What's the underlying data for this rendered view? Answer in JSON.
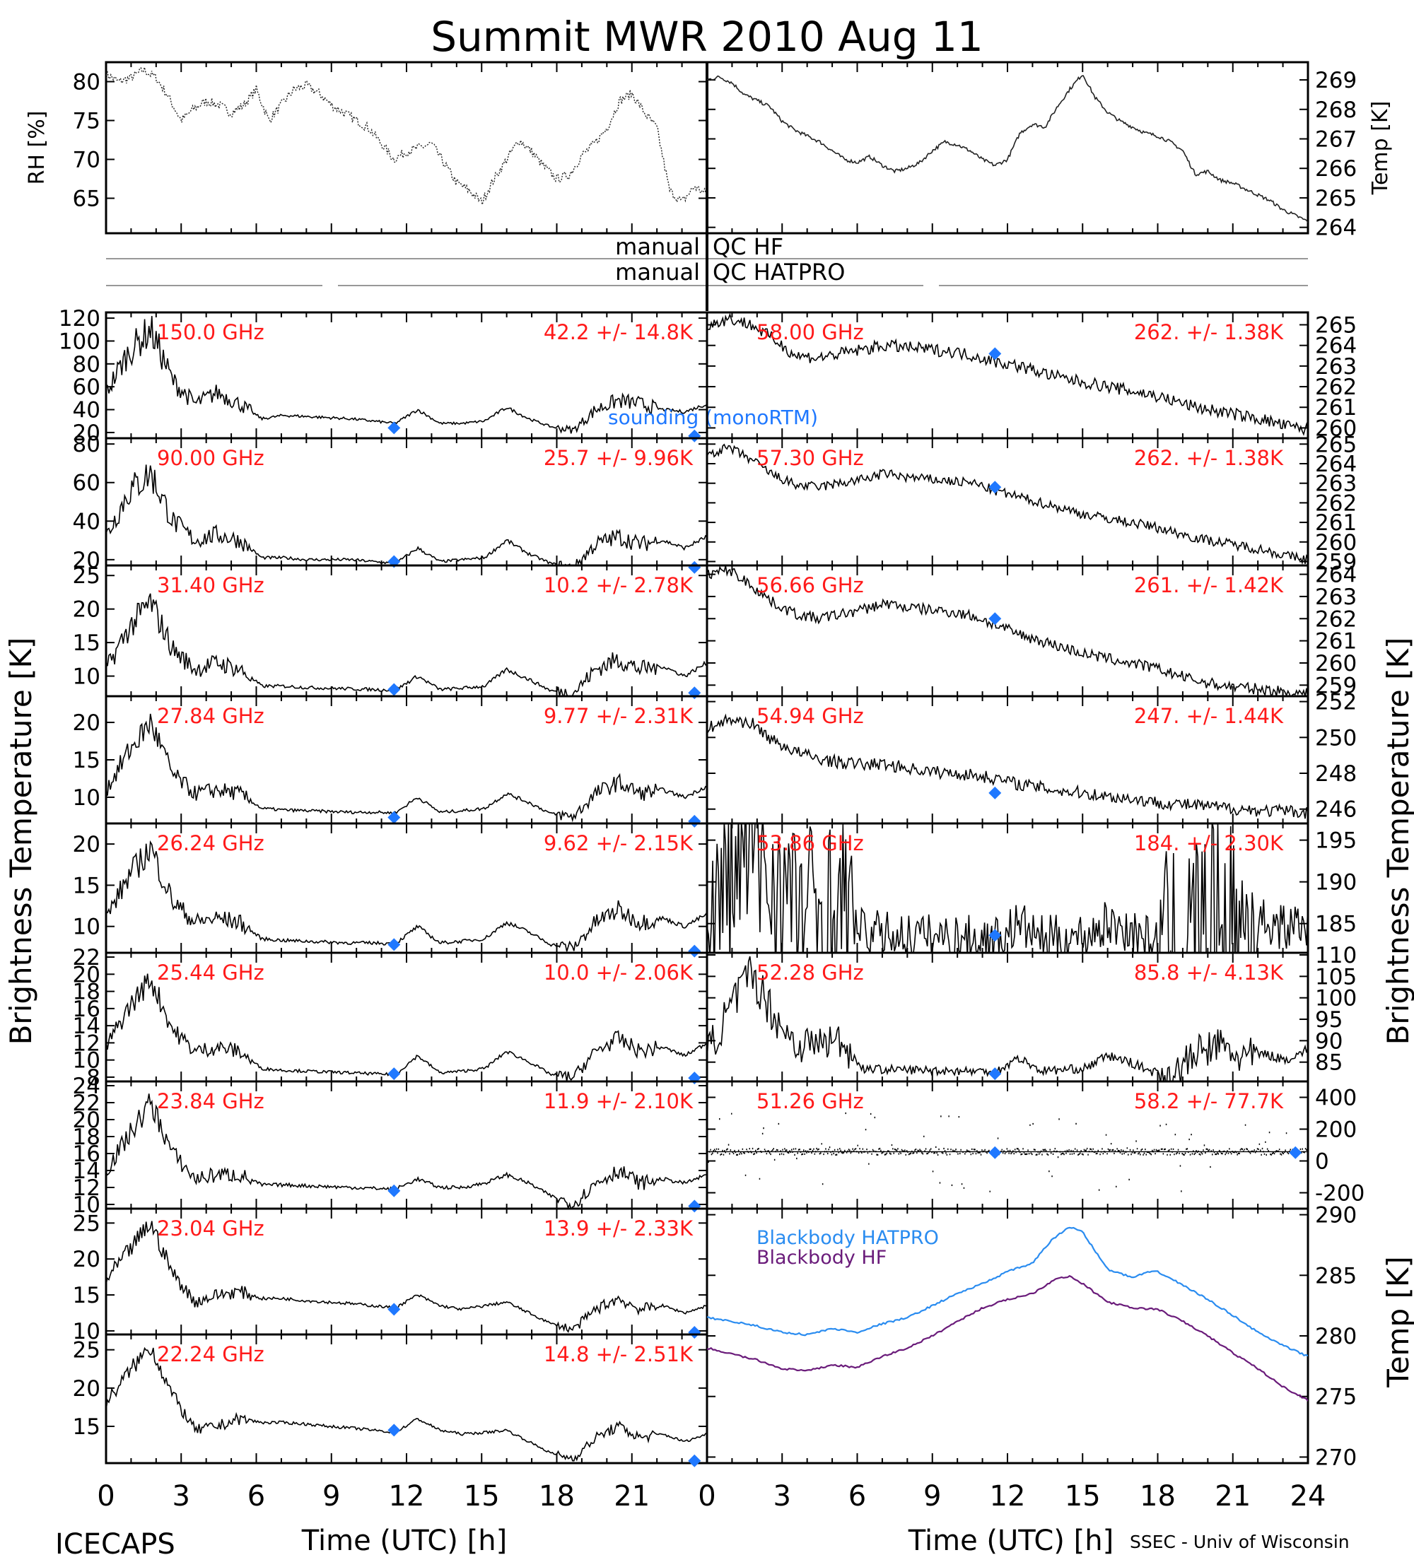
{
  "title": "Summit MWR 2010 Aug 11",
  "footer": {
    "left": "ICECAPS",
    "right": "SSEC - Univ of Wisconsin",
    "xlabel_left": "Time (UTC) [h]",
    "xlabel_right": "Time (UTC) [h]"
  },
  "axis_titles": {
    "left": "Brightness Temperature [K]",
    "right": "Brightness Temperature [K]",
    "bottom_right": "Temp [K]"
  },
  "qc_labels": {
    "hf_left": "manual",
    "hf_right": "QC HF",
    "hatpro_left": "manual",
    "hatpro_right": "QC HATPRO"
  },
  "sounding_label": "sounding (monoRTM)",
  "colors": {
    "trace": "#000000",
    "label": "#ff1a1a",
    "sounding": "#1f78ff",
    "bb_hatpro": "#2a8cf0",
    "bb_hf": "#6a1b7a"
  },
  "chart_data": [
    {
      "type": "line",
      "panel": "surface-rh",
      "ylabel": "RH [%]",
      "yticks": [
        65,
        70,
        75,
        80
      ],
      "ylim": [
        60.5,
        82.5
      ],
      "x": [
        0,
        0.5,
        1,
        1.5,
        2,
        2.5,
        3,
        3.5,
        4,
        4.5,
        5,
        5.5,
        6,
        6.5,
        7,
        7.5,
        8,
        8.5,
        9,
        9.5,
        10,
        10.5,
        11,
        11.5,
        12,
        12.5,
        13,
        13.5,
        14,
        14.5,
        15,
        15.5,
        16,
        16.5,
        17,
        17.5,
        18,
        18.5,
        19,
        19.5,
        20,
        20.5,
        21,
        21.5,
        22,
        22.5,
        23,
        23.5,
        24
      ],
      "y": [
        81,
        80,
        80.5,
        81.5,
        80.5,
        78,
        75,
        76.5,
        77.5,
        77,
        76,
        77,
        79,
        75,
        77,
        79,
        79.5,
        78.5,
        77,
        76,
        75,
        74,
        72,
        70,
        71,
        71.5,
        72,
        69.5,
        67,
        66,
        64.5,
        67.5,
        70,
        72.5,
        71,
        69,
        67.5,
        68,
        70.5,
        72,
        74,
        77.5,
        78.5,
        76,
        74,
        66,
        64.5,
        66.5,
        65.5
      ]
    },
    {
      "type": "line",
      "panel": "surface-temp",
      "ylabel": "Temp [K]",
      "yticks": [
        264,
        265,
        266,
        267,
        268,
        269
      ],
      "ylim": [
        263.8,
        269.6
      ],
      "x": [
        0,
        0.5,
        1,
        1.5,
        2,
        2.5,
        3,
        3.5,
        4,
        4.5,
        5,
        5.5,
        6,
        6.5,
        7,
        7.5,
        8,
        8.5,
        9,
        9.5,
        10,
        10.5,
        11,
        11.5,
        12,
        12.5,
        13,
        13.5,
        14,
        14.5,
        15,
        15.5,
        16,
        16.5,
        17,
        17.5,
        18,
        18.5,
        19,
        19.5,
        20,
        20.5,
        21,
        21.5,
        22,
        22.5,
        23,
        23.5,
        24
      ],
      "y": [
        269,
        269.1,
        268.9,
        268.5,
        268.3,
        268.1,
        267.6,
        267.3,
        267.1,
        266.9,
        266.6,
        266.3,
        266.2,
        266.4,
        266.1,
        265.9,
        266,
        266.2,
        266.6,
        266.9,
        266.8,
        266.6,
        266.3,
        266.1,
        266.3,
        267.2,
        267.5,
        267.4,
        268.1,
        268.7,
        269.2,
        268.4,
        267.9,
        267.6,
        267.4,
        267.2,
        267.1,
        266.9,
        266.6,
        265.8,
        265.9,
        265.6,
        265.5,
        265.3,
        265.1,
        264.9,
        264.6,
        264.4,
        264.2
      ]
    },
    {
      "type": "line",
      "panel": "tb-left",
      "label": "150.0 GHz",
      "stat": "42.2 +/- 14.8K",
      "yticks": [
        20,
        40,
        60,
        80,
        100,
        120
      ],
      "ylim": [
        15,
        125
      ],
      "profile": [
        55,
        90,
        110,
        65,
        45,
        55,
        45,
        32,
        35,
        34,
        33,
        32,
        30,
        28,
        40,
        28,
        28,
        30,
        42,
        32,
        25,
        22,
        40,
        48,
        45,
        40,
        38,
        45
      ],
      "amp": 0.15,
      "sounding": [
        [
          11.5,
          24
        ],
        [
          23.5,
          17
        ]
      ]
    },
    {
      "type": "line",
      "panel": "tb-left",
      "label": "90.00 GHz",
      "stat": "25.7 +/- 9.96K",
      "yticks": [
        20,
        40,
        60,
        80
      ],
      "ylim": [
        17,
        83
      ],
      "profile": [
        32,
        55,
        65,
        40,
        30,
        33,
        30,
        21,
        21,
        20,
        20,
        20,
        19,
        18,
        26,
        19,
        20,
        21,
        30,
        23,
        18,
        16,
        28,
        32,
        28,
        30,
        26,
        32
      ],
      "amp": 0.15,
      "sounding": [
        [
          11.5,
          19
        ],
        [
          23.5,
          16
        ]
      ]
    },
    {
      "type": "line",
      "panel": "tb-left",
      "label": "31.40 GHz",
      "stat": "10.2 +/- 2.78K",
      "yticks": [
        10,
        15,
        20,
        25
      ],
      "ylim": [
        7,
        26.5
      ],
      "profile": [
        11,
        17,
        21,
        14,
        11,
        12,
        11,
        8.5,
        8.5,
        8.3,
        8.2,
        8.1,
        8.0,
        7.9,
        10,
        8,
        8.2,
        8.5,
        11,
        9.5,
        7.8,
        7.5,
        11,
        12.5,
        11,
        11.5,
        10,
        12
      ],
      "amp": 0.12,
      "sounding": [
        [
          11.5,
          8
        ],
        [
          23.5,
          7.5
        ]
      ]
    },
    {
      "type": "line",
      "panel": "tb-left",
      "label": "27.84 GHz",
      "stat": "9.77 +/- 2.31K",
      "yticks": [
        10,
        15,
        20
      ],
      "ylim": [
        6.5,
        23.5
      ],
      "profile": [
        11,
        16,
        20,
        13,
        10.5,
        11,
        10.5,
        8.5,
        8.3,
        8.2,
        8.1,
        8.0,
        8.0,
        7.9,
        10,
        8,
        8.2,
        8.5,
        10.5,
        9.3,
        7.8,
        7.4,
        10.5,
        12,
        10.5,
        11,
        10,
        11.5
      ],
      "amp": 0.1,
      "sounding": [
        [
          11.5,
          7.3
        ],
        [
          23.5,
          6.8
        ]
      ]
    },
    {
      "type": "line",
      "panel": "tb-left",
      "label": "26.24 GHz",
      "stat": "9.62 +/- 2.15K",
      "yticks": [
        10,
        15,
        20
      ],
      "ylim": [
        6.8,
        22.5
      ],
      "profile": [
        11,
        16,
        19.5,
        13,
        10.5,
        11,
        10.5,
        8.5,
        8.3,
        8.2,
        8.1,
        8.0,
        8.0,
        7.9,
        10,
        8,
        8.2,
        8.5,
        10.5,
        9.3,
        7.8,
        7.4,
        10.5,
        12,
        10.5,
        11,
        10,
        11.5
      ],
      "amp": 0.1,
      "sounding": [
        [
          11.5,
          7.8
        ],
        [
          23.5,
          7
        ]
      ]
    },
    {
      "type": "line",
      "panel": "tb-left",
      "label": "25.44 GHz",
      "stat": "10.0 +/- 2.06K",
      "yticks": [
        8,
        10,
        12,
        14,
        16,
        18,
        20,
        22
      ],
      "ylim": [
        7.5,
        22.5
      ],
      "profile": [
        11.5,
        16,
        19.5,
        13.5,
        11,
        11.5,
        11,
        9,
        8.8,
        8.7,
        8.6,
        8.5,
        8.4,
        8.3,
        10.5,
        8.5,
        8.7,
        9,
        11,
        9.8,
        8.3,
        8,
        11,
        12.5,
        11,
        11.5,
        10.5,
        12
      ],
      "amp": 0.08,
      "sounding": [
        [
          11.5,
          8.4
        ],
        [
          23.5,
          7.9
        ]
      ]
    },
    {
      "type": "line",
      "panel": "tb-left",
      "label": "23.84 GHz",
      "stat": "11.9 +/- 2.10K",
      "yticks": [
        10,
        12,
        14,
        16,
        18,
        20,
        22,
        24
      ],
      "ylim": [
        9.5,
        24.5
      ],
      "profile": [
        14,
        18,
        22,
        16,
        13,
        13.5,
        13.5,
        12.3,
        12.3,
        12.2,
        12.1,
        12.0,
        11.9,
        11.8,
        13,
        12,
        12,
        12.5,
        13.5,
        12.5,
        11,
        10,
        12.5,
        14,
        12.5,
        13,
        12.5,
        13.5
      ],
      "amp": 0.07,
      "sounding": [
        [
          11.5,
          11.6
        ],
        [
          23.5,
          9.8
        ]
      ]
    },
    {
      "type": "line",
      "panel": "tb-left",
      "label": "23.04 GHz",
      "stat": "13.9 +/- 2.33K",
      "yticks": [
        10,
        15,
        20,
        25
      ],
      "ylim": [
        9.5,
        27
      ],
      "profile": [
        17,
        21,
        25,
        18,
        14,
        15,
        15.5,
        14.5,
        14.5,
        14.2,
        14,
        13.8,
        13.5,
        13.2,
        15,
        13.5,
        13,
        13.5,
        14,
        12.5,
        11,
        10.2,
        13,
        14.5,
        13,
        13.5,
        12.5,
        13.5
      ],
      "amp": 0.06,
      "sounding": [
        [
          11.5,
          13
        ],
        [
          23.5,
          9.8
        ]
      ]
    },
    {
      "type": "line",
      "panel": "tb-left",
      "label": "22.24 GHz",
      "stat": "14.8 +/- 2.51K",
      "yticks": [
        15,
        20,
        25
      ],
      "ylim": [
        10.2,
        27
      ],
      "profile": [
        18,
        22,
        25.5,
        19,
        14.5,
        15,
        16,
        15.5,
        15.5,
        15.3,
        15,
        14.8,
        14.5,
        14.2,
        16,
        14.5,
        14,
        14.2,
        14.5,
        13,
        11.5,
        10.8,
        13.5,
        15,
        13.5,
        14,
        13,
        14
      ],
      "amp": 0.05,
      "sounding": [
        [
          11.5,
          14.5
        ],
        [
          23.5,
          10.5
        ]
      ]
    },
    {
      "type": "line",
      "panel": "tb-right",
      "label": "58.00 GHz",
      "stat": "262. +/- 1.38K",
      "yticks": [
        260,
        261,
        262,
        263,
        264,
        265
      ],
      "ylim": [
        259.5,
        265.6
      ],
      "profile": [
        265,
        265.3,
        265,
        264.3,
        263.5,
        263.4,
        263.6,
        263.8,
        264.0,
        263.9,
        263.8,
        263.7,
        263.5,
        263.2,
        263.0,
        262.7,
        262.4,
        262.2,
        262.0,
        261.8,
        261.6,
        261.3,
        261.0,
        260.8,
        260.6,
        260.4,
        260.1,
        259.9
      ],
      "noise": 0.3,
      "sounding": [
        [
          11.5,
          263.6
        ]
      ]
    },
    {
      "type": "line",
      "panel": "tb-right",
      "label": "57.30 GHz",
      "stat": "262. +/- 1.38K",
      "yticks": [
        259,
        260,
        261,
        262,
        263,
        264,
        265
      ],
      "ylim": [
        258.8,
        265.3
      ],
      "profile": [
        264.5,
        264.8,
        264.2,
        263.4,
        262.9,
        262.8,
        263.0,
        263.2,
        263.5,
        263.3,
        263.2,
        263.1,
        263.0,
        262.6,
        262.3,
        262.0,
        261.7,
        261.4,
        261.2,
        261.0,
        260.8,
        260.5,
        260.2,
        260.0,
        259.8,
        259.6,
        259.3,
        259.1
      ],
      "noise": 0.25,
      "sounding": [
        [
          11.5,
          262.8
        ]
      ]
    },
    {
      "type": "line",
      "panel": "tb-right",
      "label": "56.66 GHz",
      "stat": "261. +/- 1.42K",
      "yticks": [
        259,
        260,
        261,
        262,
        263,
        264
      ],
      "ylim": [
        258.5,
        264.4
      ],
      "profile": [
        264,
        264.2,
        263.5,
        262.7,
        262.2,
        262.0,
        262.2,
        262.4,
        262.7,
        262.5,
        262.4,
        262.3,
        262.1,
        261.7,
        261.3,
        261.0,
        260.7,
        260.4,
        260.2,
        260.0,
        259.8,
        259.5,
        259.2,
        259.0,
        258.9,
        258.8,
        258.7,
        258.6
      ],
      "noise": 0.25,
      "sounding": [
        [
          11.5,
          262.0
        ]
      ]
    },
    {
      "type": "line",
      "panel": "tb-right",
      "label": "54.94 GHz",
      "stat": "247. +/- 1.44K",
      "yticks": [
        246,
        248,
        250,
        252
      ],
      "ylim": [
        245.2,
        252.3
      ],
      "profile": [
        250.5,
        251,
        250.8,
        249.8,
        249.2,
        248.8,
        248.6,
        248.5,
        248.5,
        248.3,
        248.1,
        248.0,
        247.9,
        247.7,
        247.4,
        247.2,
        247.0,
        246.9,
        246.7,
        246.6,
        246.4,
        246.3,
        246.2,
        246.1,
        246.0,
        245.9,
        245.9,
        245.8
      ],
      "noise": 0.35,
      "sounding": [
        [
          11.5,
          246.9
        ]
      ]
    },
    {
      "type": "line",
      "panel": "tb-right",
      "label": "53.86 GHz",
      "stat": "184. +/- 2.30K",
      "yticks": [
        185,
        190,
        195
      ],
      "ylim": [
        181.5,
        197
      ],
      "profile": [
        185,
        190,
        194,
        190,
        187,
        186.5,
        187,
        184,
        183.8,
        183.6,
        183.5,
        183.4,
        183.3,
        183.2,
        185,
        183.3,
        183.3,
        183.6,
        185,
        184.2,
        183,
        182.6,
        185.5,
        186.5,
        184.8,
        185.3,
        184.5,
        185.2
      ],
      "amp": 0.06,
      "sounding": [
        [
          11.5,
          183.6
        ]
      ]
    },
    {
      "type": "line",
      "panel": "tb-right",
      "label": "52.28 GHz",
      "stat": "85.8 +/- 4.13K",
      "yticks": [
        85,
        90,
        95,
        100,
        105,
        110
      ],
      "ylim": [
        80.5,
        110.5
      ],
      "profile": [
        87,
        97,
        106,
        96,
        89,
        89.5,
        90,
        83.5,
        83.3,
        83.2,
        83.1,
        83,
        82.9,
        82.8,
        86,
        83,
        83.2,
        83.6,
        86.5,
        85,
        82.8,
        82.2,
        87,
        89,
        86,
        87,
        85.5,
        88
      ],
      "amp": 0.05,
      "sounding": [
        [
          11.5,
          82.3
        ]
      ]
    },
    {
      "type": "scatter",
      "panel": "tb-right",
      "label": "51.26 GHz",
      "stat": "58.2 +/- 77.7K",
      "yticks": [
        -200,
        0,
        200,
        400
      ],
      "ylim": [
        -300,
        500
      ],
      "center": 58,
      "sounding": [
        [
          11.5,
          52
        ],
        [
          23.5,
          52
        ]
      ]
    },
    {
      "type": "line",
      "panel": "blackbody-temp",
      "yticks": [
        270,
        275,
        280,
        285,
        290
      ],
      "ylim": [
        269.5,
        290.5
      ],
      "series": [
        {
          "name": "Blackbody HATPRO",
          "x": [
            0,
            1,
            2,
            3,
            4,
            5,
            6,
            7,
            8,
            9,
            10,
            11,
            12,
            13,
            13.8,
            14.5,
            15,
            15.5,
            16,
            17,
            17.5,
            18,
            19,
            20,
            21,
            22,
            23,
            24
          ],
          "y": [
            281.5,
            281.2,
            280.8,
            280.3,
            280.1,
            280.6,
            280.3,
            281.0,
            281.5,
            282.5,
            283.5,
            284.3,
            285.3,
            286.0,
            288.0,
            289.0,
            288.6,
            287.0,
            285.5,
            284.8,
            285.2,
            285.3,
            284.2,
            283.0,
            281.7,
            280.3,
            279.2,
            278.3
          ]
        },
        {
          "name": "Blackbody HF",
          "x": [
            0,
            1,
            2,
            3,
            4,
            5,
            6,
            7,
            8,
            9,
            10,
            11,
            12,
            13,
            14,
            14.5,
            15,
            16,
            17,
            18,
            19,
            20,
            21,
            22,
            23,
            24
          ],
          "y": [
            279.0,
            278.5,
            278.0,
            277.3,
            277.1,
            277.6,
            277.4,
            278.3,
            279.0,
            280.0,
            281.2,
            282.3,
            283.0,
            283.5,
            284.8,
            284.9,
            284.3,
            282.8,
            282.3,
            282.2,
            281.2,
            280.0,
            278.6,
            277.3,
            275.8,
            274.7
          ]
        }
      ]
    }
  ],
  "x_axis": {
    "ticks_left": [
      "0",
      "3",
      "6",
      "9",
      "12",
      "15",
      "18",
      "21"
    ],
    "ticks_right": [
      "0",
      "3",
      "6",
      "9",
      "12",
      "15",
      "18",
      "21",
      "24"
    ]
  }
}
